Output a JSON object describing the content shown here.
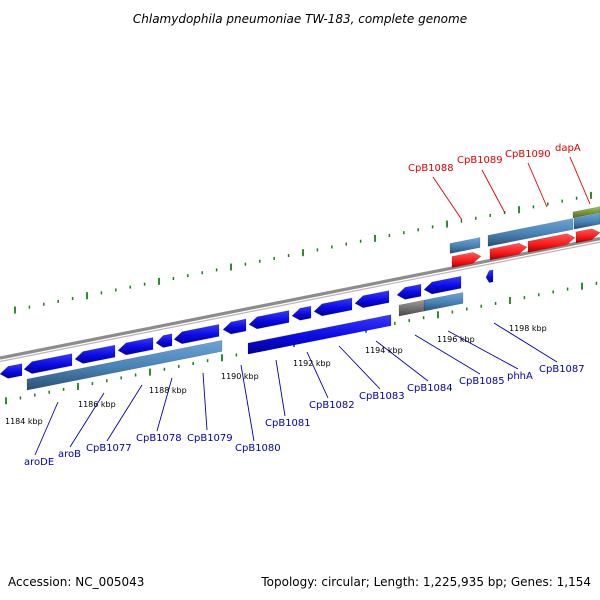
{
  "title": "Chlamydophila pneumoniae TW-183, complete genome",
  "footer": {
    "accession": "Accession: NC_005043",
    "summary": "Topology: circular; Length: 1,225,935 bp; Genes: 1,154"
  },
  "colors": {
    "background": "#ffffff",
    "backbone": "#8c8c8c",
    "tick": "#1a7f1a",
    "forward_gene": "#0a0ae6",
    "reverse_gene_row": "#4682b4",
    "highlight_gene": "#ff1a1a",
    "pseudo_gene": "#6e6e6e",
    "rna_gene": "#6b8e23",
    "label_red": "#e00000",
    "label_blue": "#0000b0"
  },
  "genome_position_labels": [
    "1184 kbp",
    "1186 kbp",
    "1188 kbp",
    "1190 kbp",
    "1192 kbp",
    "1194 kbp",
    "1196 kbp",
    "1198 kbp"
  ],
  "upper_gene_labels": [
    "CpB1088",
    "CpB1089",
    "CpB1090",
    "dapA"
  ],
  "lower_gene_labels": [
    "aroDE",
    "aroB",
    "CpB1077",
    "CpB1078",
    "CpB1079",
    "CpB1080",
    "CpB1081",
    "CpB1082",
    "CpB1083",
    "CpB1084",
    "CpB1085",
    "phhA",
    "CpB1087"
  ]
}
